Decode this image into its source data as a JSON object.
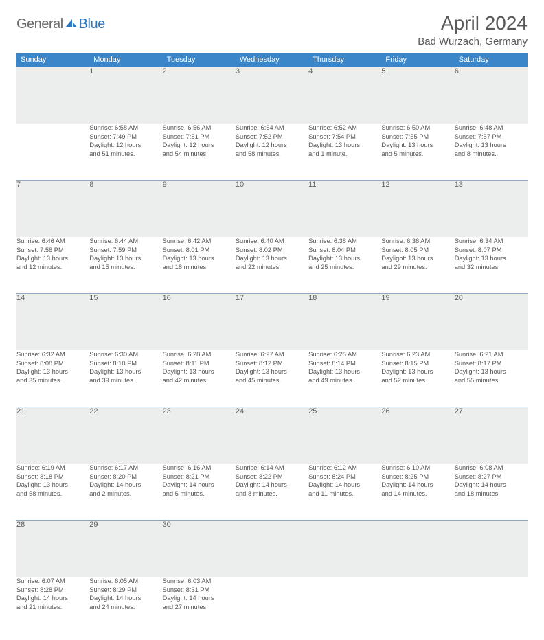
{
  "brand": {
    "part1": "General",
    "part2": "Blue"
  },
  "title": "April 2024",
  "location": "Bad Wurzach, Germany",
  "colors": {
    "header_bg": "#3a86c8",
    "header_fg": "#ffffff",
    "band_bg": "#eceded",
    "band_border": "#8aa9c4",
    "text": "#555555",
    "title_color": "#5a5a5a"
  },
  "weekdays": [
    "Sunday",
    "Monday",
    "Tuesday",
    "Wednesday",
    "Thursday",
    "Friday",
    "Saturday"
  ],
  "weeks": [
    [
      null,
      {
        "n": "1",
        "sr": "Sunrise: 6:58 AM",
        "ss": "Sunset: 7:49 PM",
        "d1": "Daylight: 12 hours",
        "d2": "and 51 minutes."
      },
      {
        "n": "2",
        "sr": "Sunrise: 6:56 AM",
        "ss": "Sunset: 7:51 PM",
        "d1": "Daylight: 12 hours",
        "d2": "and 54 minutes."
      },
      {
        "n": "3",
        "sr": "Sunrise: 6:54 AM",
        "ss": "Sunset: 7:52 PM",
        "d1": "Daylight: 12 hours",
        "d2": "and 58 minutes."
      },
      {
        "n": "4",
        "sr": "Sunrise: 6:52 AM",
        "ss": "Sunset: 7:54 PM",
        "d1": "Daylight: 13 hours",
        "d2": "and 1 minute."
      },
      {
        "n": "5",
        "sr": "Sunrise: 6:50 AM",
        "ss": "Sunset: 7:55 PM",
        "d1": "Daylight: 13 hours",
        "d2": "and 5 minutes."
      },
      {
        "n": "6",
        "sr": "Sunrise: 6:48 AM",
        "ss": "Sunset: 7:57 PM",
        "d1": "Daylight: 13 hours",
        "d2": "and 8 minutes."
      }
    ],
    [
      {
        "n": "7",
        "sr": "Sunrise: 6:46 AM",
        "ss": "Sunset: 7:58 PM",
        "d1": "Daylight: 13 hours",
        "d2": "and 12 minutes."
      },
      {
        "n": "8",
        "sr": "Sunrise: 6:44 AM",
        "ss": "Sunset: 7:59 PM",
        "d1": "Daylight: 13 hours",
        "d2": "and 15 minutes."
      },
      {
        "n": "9",
        "sr": "Sunrise: 6:42 AM",
        "ss": "Sunset: 8:01 PM",
        "d1": "Daylight: 13 hours",
        "d2": "and 18 minutes."
      },
      {
        "n": "10",
        "sr": "Sunrise: 6:40 AM",
        "ss": "Sunset: 8:02 PM",
        "d1": "Daylight: 13 hours",
        "d2": "and 22 minutes."
      },
      {
        "n": "11",
        "sr": "Sunrise: 6:38 AM",
        "ss": "Sunset: 8:04 PM",
        "d1": "Daylight: 13 hours",
        "d2": "and 25 minutes."
      },
      {
        "n": "12",
        "sr": "Sunrise: 6:36 AM",
        "ss": "Sunset: 8:05 PM",
        "d1": "Daylight: 13 hours",
        "d2": "and 29 minutes."
      },
      {
        "n": "13",
        "sr": "Sunrise: 6:34 AM",
        "ss": "Sunset: 8:07 PM",
        "d1": "Daylight: 13 hours",
        "d2": "and 32 minutes."
      }
    ],
    [
      {
        "n": "14",
        "sr": "Sunrise: 6:32 AM",
        "ss": "Sunset: 8:08 PM",
        "d1": "Daylight: 13 hours",
        "d2": "and 35 minutes."
      },
      {
        "n": "15",
        "sr": "Sunrise: 6:30 AM",
        "ss": "Sunset: 8:10 PM",
        "d1": "Daylight: 13 hours",
        "d2": "and 39 minutes."
      },
      {
        "n": "16",
        "sr": "Sunrise: 6:28 AM",
        "ss": "Sunset: 8:11 PM",
        "d1": "Daylight: 13 hours",
        "d2": "and 42 minutes."
      },
      {
        "n": "17",
        "sr": "Sunrise: 6:27 AM",
        "ss": "Sunset: 8:12 PM",
        "d1": "Daylight: 13 hours",
        "d2": "and 45 minutes."
      },
      {
        "n": "18",
        "sr": "Sunrise: 6:25 AM",
        "ss": "Sunset: 8:14 PM",
        "d1": "Daylight: 13 hours",
        "d2": "and 49 minutes."
      },
      {
        "n": "19",
        "sr": "Sunrise: 6:23 AM",
        "ss": "Sunset: 8:15 PM",
        "d1": "Daylight: 13 hours",
        "d2": "and 52 minutes."
      },
      {
        "n": "20",
        "sr": "Sunrise: 6:21 AM",
        "ss": "Sunset: 8:17 PM",
        "d1": "Daylight: 13 hours",
        "d2": "and 55 minutes."
      }
    ],
    [
      {
        "n": "21",
        "sr": "Sunrise: 6:19 AM",
        "ss": "Sunset: 8:18 PM",
        "d1": "Daylight: 13 hours",
        "d2": "and 58 minutes."
      },
      {
        "n": "22",
        "sr": "Sunrise: 6:17 AM",
        "ss": "Sunset: 8:20 PM",
        "d1": "Daylight: 14 hours",
        "d2": "and 2 minutes."
      },
      {
        "n": "23",
        "sr": "Sunrise: 6:16 AM",
        "ss": "Sunset: 8:21 PM",
        "d1": "Daylight: 14 hours",
        "d2": "and 5 minutes."
      },
      {
        "n": "24",
        "sr": "Sunrise: 6:14 AM",
        "ss": "Sunset: 8:22 PM",
        "d1": "Daylight: 14 hours",
        "d2": "and 8 minutes."
      },
      {
        "n": "25",
        "sr": "Sunrise: 6:12 AM",
        "ss": "Sunset: 8:24 PM",
        "d1": "Daylight: 14 hours",
        "d2": "and 11 minutes."
      },
      {
        "n": "26",
        "sr": "Sunrise: 6:10 AM",
        "ss": "Sunset: 8:25 PM",
        "d1": "Daylight: 14 hours",
        "d2": "and 14 minutes."
      },
      {
        "n": "27",
        "sr": "Sunrise: 6:08 AM",
        "ss": "Sunset: 8:27 PM",
        "d1": "Daylight: 14 hours",
        "d2": "and 18 minutes."
      }
    ],
    [
      {
        "n": "28",
        "sr": "Sunrise: 6:07 AM",
        "ss": "Sunset: 8:28 PM",
        "d1": "Daylight: 14 hours",
        "d2": "and 21 minutes."
      },
      {
        "n": "29",
        "sr": "Sunrise: 6:05 AM",
        "ss": "Sunset: 8:29 PM",
        "d1": "Daylight: 14 hours",
        "d2": "and 24 minutes."
      },
      {
        "n": "30",
        "sr": "Sunrise: 6:03 AM",
        "ss": "Sunset: 8:31 PM",
        "d1": "Daylight: 14 hours",
        "d2": "and 27 minutes."
      },
      null,
      null,
      null,
      null
    ]
  ]
}
